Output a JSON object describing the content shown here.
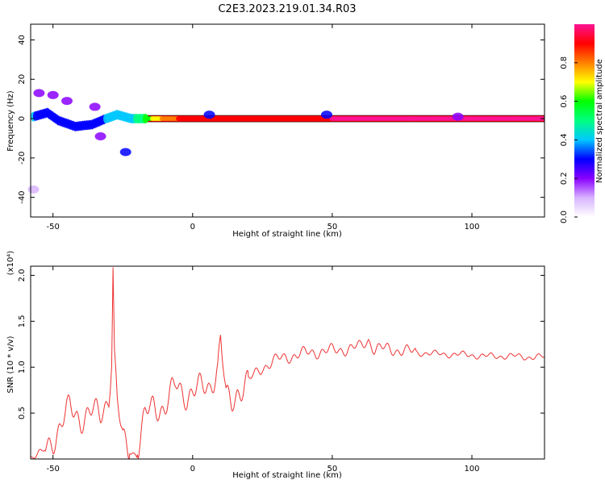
{
  "title": "C2E3.2023.219.01.34.R03",
  "chart_data": [
    {
      "type": "heatmap",
      "xlabel": "Height of straight line (km)",
      "ylabel": "Frequency (Hz)",
      "xlim": [
        -58,
        126
      ],
      "ylim": [
        -50,
        48
      ],
      "xticks": [
        -50,
        0,
        50,
        100
      ],
      "yticks": [
        -40,
        -20,
        0,
        20,
        40
      ],
      "colorbar": {
        "label": "Normalized spectral amplitude",
        "range": [
          0,
          1
        ],
        "ticks": [
          "0.0",
          "0.2",
          "0.4",
          "0.6",
          "0.8"
        ],
        "colormap": [
          "#ffffff",
          "#d8b4ff",
          "#8a00ff",
          "#0000ff",
          "#00c8ff",
          "#00ff80",
          "#00ff00",
          "#ffff00",
          "#ff8000",
          "#ff0000",
          "#ff1493"
        ]
      },
      "ridge": {
        "description_points": [
          {
            "x": -57,
            "y": 1,
            "amp": 0.35
          },
          {
            "x": -52,
            "y": 3,
            "amp": 0.3
          },
          {
            "x": -48,
            "y": -1,
            "amp": 0.3
          },
          {
            "x": -42,
            "y": -4,
            "amp": 0.25
          },
          {
            "x": -36,
            "y": -3,
            "amp": 0.3
          },
          {
            "x": -31,
            "y": 0,
            "amp": 0.35
          },
          {
            "x": -27,
            "y": 2,
            "amp": 0.35
          },
          {
            "x": -22,
            "y": 0,
            "amp": 0.4
          },
          {
            "x": -16,
            "y": 0,
            "amp": 0.6
          },
          {
            "x": -10,
            "y": 0,
            "amp": 0.8
          },
          {
            "x": 0,
            "y": 0,
            "amp": 0.9
          },
          {
            "x": 10,
            "y": 0,
            "amp": 0.9
          },
          {
            "x": 50,
            "y": 0,
            "amp": 0.95
          },
          {
            "x": 100,
            "y": 0,
            "amp": 0.95
          },
          {
            "x": 126,
            "y": 0,
            "amp": 0.95
          }
        ],
        "side_blobs": [
          {
            "x": -55,
            "y": 13,
            "amp": 0.15
          },
          {
            "x": -50,
            "y": 12,
            "amp": 0.15
          },
          {
            "x": -45,
            "y": 9,
            "amp": 0.15
          },
          {
            "x": -35,
            "y": 6,
            "amp": 0.2
          },
          {
            "x": -33,
            "y": -9,
            "amp": 0.2
          },
          {
            "x": -24,
            "y": -17,
            "amp": 0.25
          },
          {
            "x": -57,
            "y": -36,
            "amp": 0.1
          },
          {
            "x": 6,
            "y": 2,
            "amp": 0.3
          },
          {
            "x": 48,
            "y": 2,
            "amp": 0.25
          },
          {
            "x": 95,
            "y": 1,
            "amp": 0.2
          }
        ]
      }
    },
    {
      "type": "line",
      "xlabel": "Height of straight line (km)",
      "ylabel": "SNR (10 * v/v)",
      "y_multiplier": "(x10⁴)",
      "xlim": [
        -58,
        126
      ],
      "ylim": [
        0,
        2.1
      ],
      "xticks": [
        -50,
        0,
        50,
        100
      ],
      "yticks": [
        0.5,
        1.0,
        1.5,
        2.0
      ],
      "ytick_labels": [
        "0.5",
        "1.0",
        "1.5",
        "2.0"
      ],
      "color": "#ee3333",
      "series": [
        {
          "x": [
            -58,
            -54,
            -50,
            -47,
            -44,
            -40,
            -36,
            -33,
            -30,
            -29,
            -28.5,
            -28,
            -27,
            -25,
            -22,
            -20,
            -17,
            -14,
            -10,
            -6,
            -2,
            2,
            6,
            9,
            10,
            12,
            14,
            16,
            20,
            25,
            30,
            35,
            40,
            45,
            50,
            55,
            60,
            63,
            65,
            70,
            75,
            80,
            85,
            90,
            95,
            100,
            105,
            110,
            115,
            120,
            126
          ],
          "y": [
            0.02,
            0.06,
            0.22,
            0.38,
            0.55,
            0.45,
            0.5,
            0.48,
            0.7,
            1.1,
            2.08,
            1.1,
            0.6,
            0.2,
            0.08,
            0.05,
            0.45,
            0.6,
            0.55,
            0.8,
            0.7,
            0.75,
            0.8,
            1.0,
            1.3,
            0.65,
            0.6,
            0.75,
            0.85,
            1.0,
            1.08,
            1.12,
            1.15,
            1.17,
            1.18,
            1.2,
            1.22,
            1.3,
            1.2,
            1.2,
            1.18,
            1.16,
            1.15,
            1.14,
            1.14,
            1.13,
            1.12,
            1.12,
            1.12,
            1.11,
            1.11
          ]
        }
      ]
    }
  ]
}
